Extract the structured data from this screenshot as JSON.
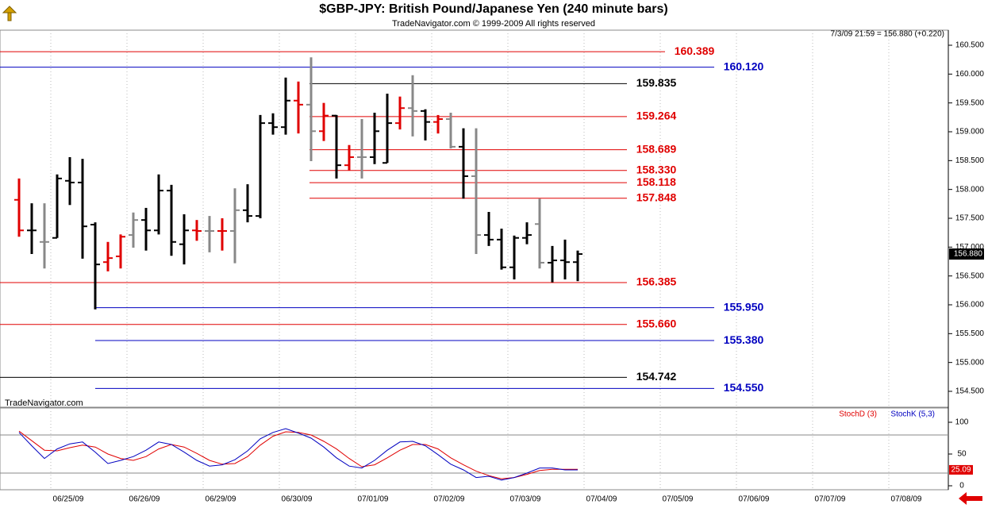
{
  "chart_data": {
    "type": "ohlc",
    "title": "$GBP-JPY:  British Pound/Japanese Yen  (240 minute bars)",
    "subtitle": "TradeNavigator.com © 1999-2009 All rights reserved",
    "status": "7/3/09 21:59 = 156.880 (+0.220)",
    "watermark": "TradeNavigator.com",
    "last_price_label": "156.880",
    "last_price": 156.88,
    "ylim": [
      154.266,
      160.734
    ],
    "yticks": [
      {
        "value": 160.5,
        "label": "160.500"
      },
      {
        "value": 160,
        "label": "160.000"
      },
      {
        "value": 159.5,
        "label": "159.500"
      },
      {
        "value": 159,
        "label": "159.000"
      },
      {
        "value": 158.5,
        "label": "158.500"
      },
      {
        "value": 158,
        "label": "158.000"
      },
      {
        "value": 157.5,
        "label": "157.500"
      },
      {
        "value": 157,
        "label": "157.000"
      },
      {
        "value": 156.5,
        "label": "156.500"
      },
      {
        "value": 156,
        "label": "156.000"
      },
      {
        "value": 155.5,
        "label": "155.500"
      },
      {
        "value": 155,
        "label": "155.000"
      },
      {
        "value": 154.5,
        "label": "154.500"
      }
    ],
    "dates": [
      "06/25/09",
      "06/26/09",
      "06/29/09",
      "06/30/09",
      "07/01/09",
      "07/02/09",
      "07/03/09",
      "07/04/09",
      "07/05/09",
      "07/06/09",
      "07/07/09",
      "07/08/09"
    ],
    "open": [
      157.82,
      157.29,
      157.09,
      157.16,
      158.15,
      158.12,
      157.39,
      156.74,
      156.84,
      157.21,
      157.47,
      157.29,
      157.98,
      157.05,
      157.29,
      157.28,
      157.28,
      157.28,
      157.64,
      157.54,
      159.15,
      159.08,
      159.54,
      159.47,
      159.01,
      159.28,
      158.42,
      158.56,
      158.56,
      158.46,
      159.15,
      159.41,
      159.36,
      159.17,
      159.22,
      158.74,
      158.23,
      157.21,
      157.13,
      156.65,
      157.16,
      157.4,
      156.73,
      156.77,
      156.74
    ],
    "high": [
      158.19,
      157.76,
      157.76,
      158.26,
      158.56,
      158.53,
      157.43,
      157.09,
      157.22,
      157.6,
      157.68,
      158.26,
      158.08,
      157.57,
      157.47,
      157.54,
      157.5,
      158.02,
      158.09,
      159.29,
      159.32,
      159.94,
      159.87,
      160.29,
      159.5,
      159.29,
      158.77,
      159.22,
      159.33,
      159.66,
      159.61,
      159.98,
      159.39,
      159.29,
      159.33,
      159.06,
      159.06,
      157.61,
      157.32,
      157.2,
      157.43,
      157.84,
      157.02,
      157.13,
      156.94
    ],
    "low": [
      157.18,
      156.88,
      156.63,
      157.16,
      157.73,
      156.8,
      155.92,
      156.58,
      156.63,
      156.99,
      156.94,
      157.22,
      156.85,
      156.7,
      157.11,
      156.91,
      156.94,
      156.72,
      157.43,
      157.5,
      158.95,
      158.95,
      158.97,
      158.49,
      158.84,
      158.19,
      158.33,
      158.19,
      158.44,
      158.46,
      159.04,
      158.92,
      158.85,
      158.97,
      158.71,
      157.84,
      156.88,
      157.02,
      156.61,
      156.44,
      157.05,
      156.63,
      156.39,
      156.44,
      156.41
    ],
    "close": [
      157.29,
      157.29,
      157.09,
      158.19,
      158.12,
      157.36,
      156.7,
      156.81,
      157.18,
      157.47,
      157.29,
      157.98,
      157.09,
      157.29,
      157.28,
      157.28,
      157.28,
      157.64,
      157.54,
      159.15,
      159.08,
      159.54,
      159.47,
      159.01,
      159.28,
      158.42,
      158.56,
      158.56,
      159.01,
      159.15,
      159.41,
      159.36,
      159.17,
      159.22,
      158.74,
      158.23,
      157.21,
      157.13,
      156.65,
      157.16,
      157.21,
      156.73,
      156.77,
      156.74,
      156.88
    ],
    "bar_colors": [
      "#e00000",
      "#000000",
      "#888888",
      "#000000",
      "#000000",
      "#000000",
      "#000000",
      "#e00000",
      "#e00000",
      "#888888",
      "#000000",
      "#000000",
      "#000000",
      "#000000",
      "#e00000",
      "#888888",
      "#e00000",
      "#888888",
      "#000000",
      "#000000",
      "#000000",
      "#000000",
      "#e00000",
      "#888888",
      "#e00000",
      "#000000",
      "#e00000",
      "#888888",
      "#000000",
      "#000000",
      "#e00000",
      "#888888",
      "#000000",
      "#e00000",
      "#888888",
      "#000000",
      "#888888",
      "#000000",
      "#000000",
      "#000000",
      "#000000",
      "#888888",
      "#000000",
      "#000000",
      "#000000"
    ],
    "levels": {
      "values": [
        160.389,
        160.12,
        159.835,
        159.264,
        158.689,
        158.33,
        158.118,
        157.848,
        156.385,
        155.95,
        155.66,
        155.38,
        154.742,
        154.55
      ],
      "value_labels": [
        "160.389",
        "160.120",
        "159.835",
        "159.264",
        "158.689",
        "158.330",
        "158.118",
        "157.848",
        "156.385",
        "155.950",
        "155.660",
        "155.380",
        "154.742",
        "154.550"
      ],
      "colors": [
        "#e00000",
        "#0000c0",
        "#000000",
        "#e00000",
        "#e00000",
        "#e00000",
        "#e00000",
        "#e00000",
        "#e00000",
        "#0000c0",
        "#e00000",
        "#0000c0",
        "#000000",
        "#0000c0"
      ]
    },
    "stoch": {
      "y2lim": [
        -3.75,
        121.25
      ],
      "y2ticks": [
        100,
        50,
        0
      ],
      "bands": [
        80,
        20
      ],
      "last": 25.09,
      "last_label": "25.09",
      "series": [
        {
          "name": "StochD (3)",
          "color": "#e00000",
          "values": [
            86,
            71,
            56,
            55,
            60,
            64,
            61,
            50,
            43,
            40,
            46,
            58,
            65,
            61,
            51,
            40,
            34,
            35,
            46,
            64,
            78,
            85,
            84,
            80,
            70,
            58,
            43,
            30,
            33,
            44,
            56,
            65,
            65,
            58,
            44,
            33,
            23,
            16,
            11,
            13,
            18,
            24,
            26,
            26,
            26
          ]
        },
        {
          "name": "StochK (5,3)",
          "color": "#0000c0",
          "values": [
            84,
            63,
            43,
            58,
            66,
            69,
            53,
            35,
            40,
            46,
            56,
            69,
            65,
            53,
            40,
            31,
            33,
            41,
            55,
            74,
            84,
            90,
            83,
            75,
            61,
            44,
            31,
            28,
            40,
            56,
            69,
            70,
            63,
            49,
            34,
            25,
            13,
            15,
            9,
            13,
            20,
            28,
            28,
            25,
            25
          ]
        }
      ]
    }
  }
}
